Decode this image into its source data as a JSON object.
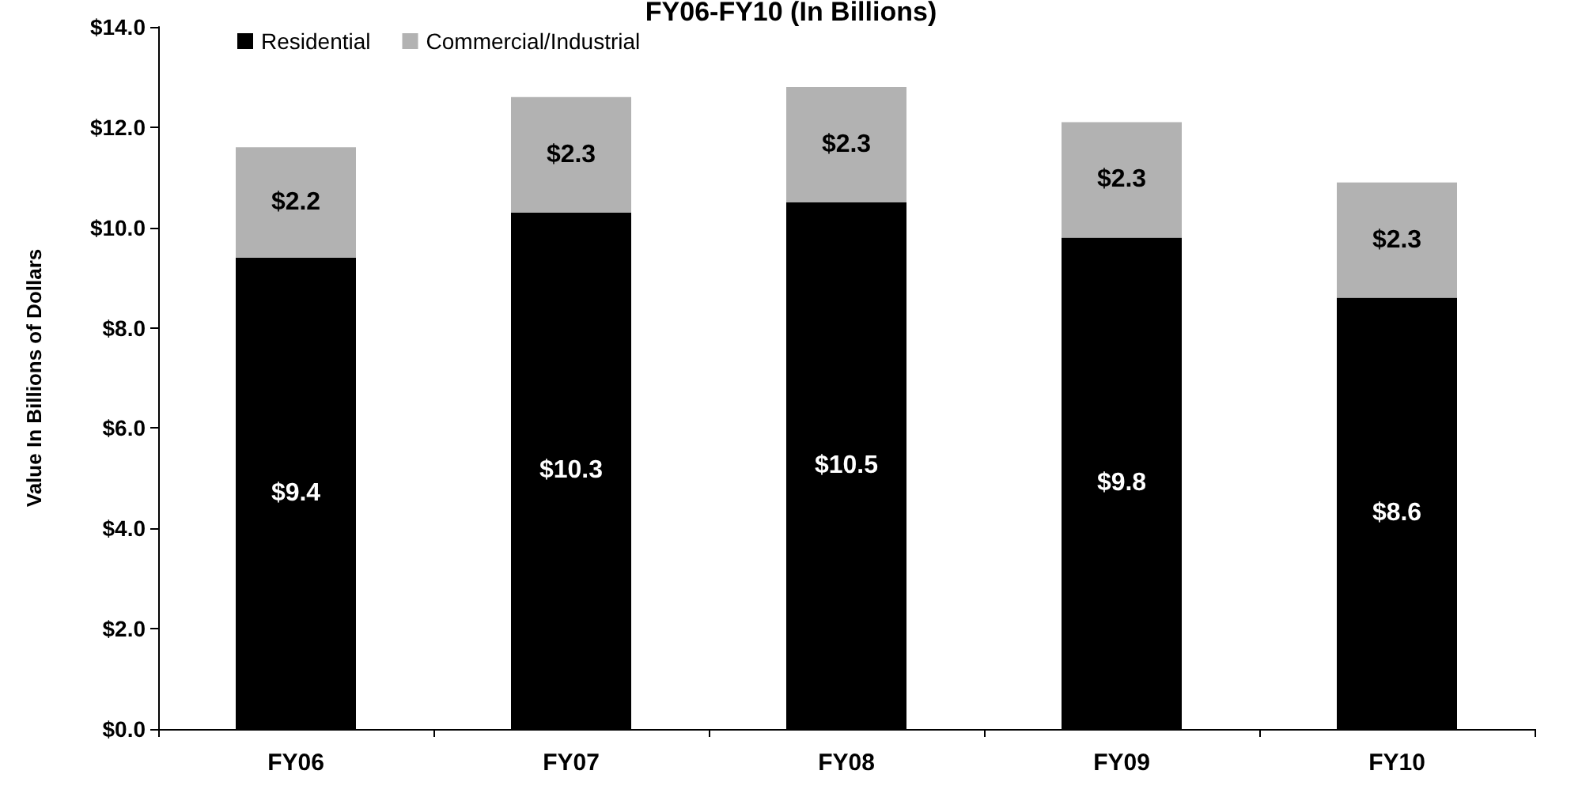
{
  "chart_data": {
    "type": "bar",
    "title": "FY06-FY10 (In Billions)",
    "ylabel": "Value In Billions of Dollars",
    "categories": [
      "FY06",
      "FY07",
      "FY08",
      "FY09",
      "FY10"
    ],
    "stacked": true,
    "series": [
      {
        "name": "Residential",
        "color": "#000000",
        "values": [
          9.4,
          10.3,
          10.5,
          9.8,
          8.6
        ],
        "value_labels": [
          "$9.4",
          "$10.3",
          "$10.5",
          "$9.8",
          "$8.6"
        ]
      },
      {
        "name": "Commercial/Industrial",
        "color": "#b2b2b2",
        "values": [
          2.2,
          2.3,
          2.3,
          2.3,
          2.3
        ],
        "value_labels": [
          "$2.2",
          "$2.3",
          "$2.3",
          "$2.3",
          "$2.3"
        ]
      }
    ],
    "ylim": [
      0,
      14
    ],
    "yticks": [
      {
        "value": 0,
        "label": "$0.0"
      },
      {
        "value": 2,
        "label": "$2.0"
      },
      {
        "value": 4,
        "label": "$4.0"
      },
      {
        "value": 6,
        "label": "$6.0"
      },
      {
        "value": 8,
        "label": "$8.0"
      },
      {
        "value": 10,
        "label": "$10.0"
      },
      {
        "value": 12,
        "label": "$12.0"
      },
      {
        "value": 14,
        "label": "$14.0"
      }
    ],
    "grid": false,
    "legend": "top left"
  }
}
